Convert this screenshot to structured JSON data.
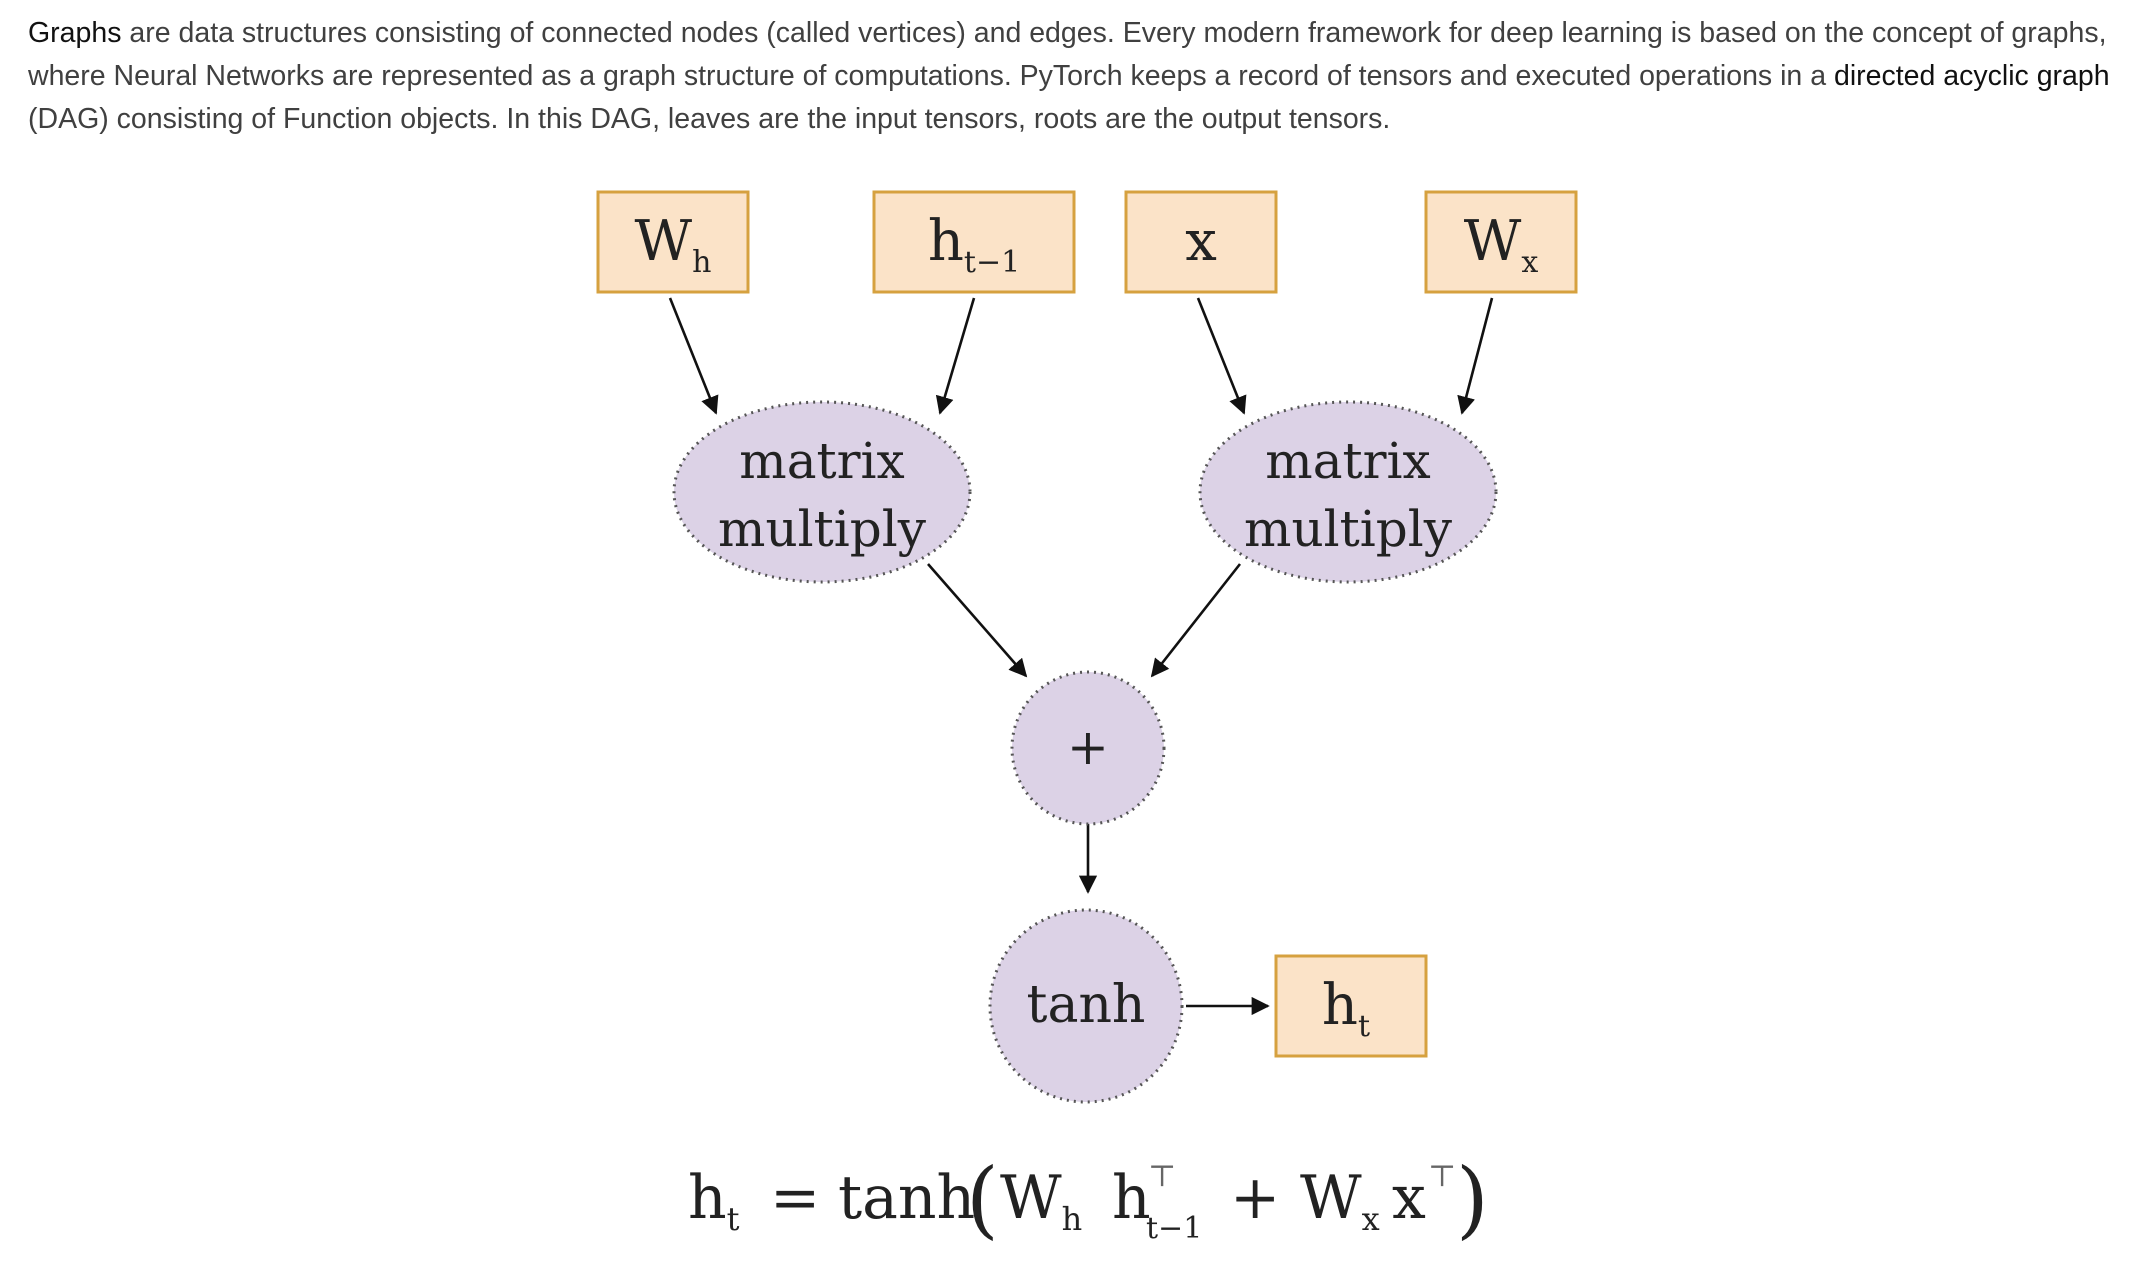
{
  "intro": {
    "link_graphs": "Graphs",
    "text_1": " are data structures consisting of connected nodes (called vertices) and edges. Every modern framework for deep learning is based on the concept of graphs, where Neural Networks are represented as a graph structure of computations. PyTorch keeps a record of tensors and executed operations in a ",
    "link_dag": "directed acyclic graph",
    "text_2": " (DAG) consisting of Function objects. In this DAG, leaves are the input tensors, roots are the output tensors."
  },
  "diagram": {
    "inputs": {
      "wh": {
        "base": "W",
        "sub": "h"
      },
      "h_prev": {
        "base": "h",
        "sub": "t−1"
      },
      "x": {
        "base": "x"
      },
      "wx": {
        "base": "W",
        "sub": "x"
      }
    },
    "ops": {
      "matmul_left": {
        "line1": "matrix",
        "line2": "multiply"
      },
      "matmul_right": {
        "line1": "matrix",
        "line2": "multiply"
      },
      "add": {
        "label": "+"
      },
      "tanh": {
        "label": "tanh"
      }
    },
    "output": {
      "base": "h",
      "sub": "t"
    },
    "equation": {
      "lhs_base": "h",
      "lhs_sub": "t",
      "equals": "=",
      "func": "tanh",
      "open_paren": "(",
      "w1_base": "W",
      "w1_sub": "h",
      "h_base": "h",
      "h_sup": "⊤",
      "h_sub": "t−1",
      "plus": "+",
      "w2_base": "W",
      "w2_sub": "x",
      "x_base": "x",
      "x_sup": "⊤",
      "close_paren": ")"
    },
    "colors": {
      "input_fill": "#fbe3c8",
      "input_stroke": "#d6a13f",
      "op_fill": "#dcd2e6",
      "op_stroke": "#555555",
      "arrow": "#111111",
      "text": "#222222"
    }
  }
}
